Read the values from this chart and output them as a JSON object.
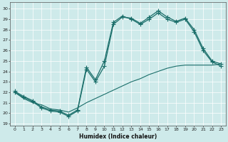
{
  "xlabel": "Humidex (Indice chaleur)",
  "bg_color": "#ceeaea",
  "grid_color": "#aed4d4",
  "line_color": "#1a6e6a",
  "xlim": [
    -0.5,
    23.5
  ],
  "ylim": [
    18.8,
    30.6
  ],
  "xticks": [
    0,
    1,
    2,
    3,
    4,
    5,
    6,
    7,
    8,
    9,
    10,
    11,
    12,
    13,
    14,
    15,
    16,
    17,
    18,
    19,
    20,
    21,
    22,
    23
  ],
  "yticks": [
    19,
    20,
    21,
    22,
    23,
    24,
    25,
    26,
    27,
    28,
    29,
    30
  ],
  "line1_x": [
    0,
    1,
    2,
    3,
    4,
    5,
    6,
    7,
    8,
    9,
    10,
    11,
    12,
    13,
    14,
    15,
    16,
    17,
    18,
    19,
    20,
    21,
    22,
    23
  ],
  "line1_y": [
    22.0,
    21.5,
    21.1,
    20.5,
    20.2,
    20.1,
    19.7,
    20.2,
    24.2,
    23.0,
    24.5,
    28.5,
    29.2,
    29.1,
    28.6,
    29.2,
    29.8,
    29.2,
    28.8,
    29.1,
    28.0,
    26.2,
    25.0,
    24.7
  ],
  "line2_x": [
    0,
    1,
    2,
    3,
    4,
    5,
    6,
    7,
    8,
    9,
    10,
    11,
    12,
    13,
    14,
    15,
    16,
    17,
    18,
    19,
    20,
    21,
    22,
    23
  ],
  "line2_y": [
    22.1,
    21.6,
    21.2,
    20.6,
    20.3,
    20.2,
    19.8,
    20.3,
    24.4,
    23.2,
    25.0,
    28.7,
    29.3,
    29.0,
    28.5,
    29.0,
    29.6,
    29.0,
    28.7,
    29.0,
    27.8,
    26.0,
    24.9,
    24.5
  ],
  "line3_x": [
    0,
    1,
    2,
    3,
    4,
    5,
    6,
    7,
    8,
    9,
    10,
    11,
    12,
    13,
    14,
    15,
    16,
    17,
    18,
    19,
    20,
    21,
    22,
    23
  ],
  "line3_y": [
    22.0,
    21.4,
    21.0,
    20.8,
    20.4,
    20.3,
    20.1,
    20.5,
    21.0,
    21.4,
    21.8,
    22.2,
    22.6,
    23.0,
    23.3,
    23.7,
    24.0,
    24.3,
    24.5,
    24.6,
    24.6,
    24.6,
    24.6,
    24.7
  ]
}
